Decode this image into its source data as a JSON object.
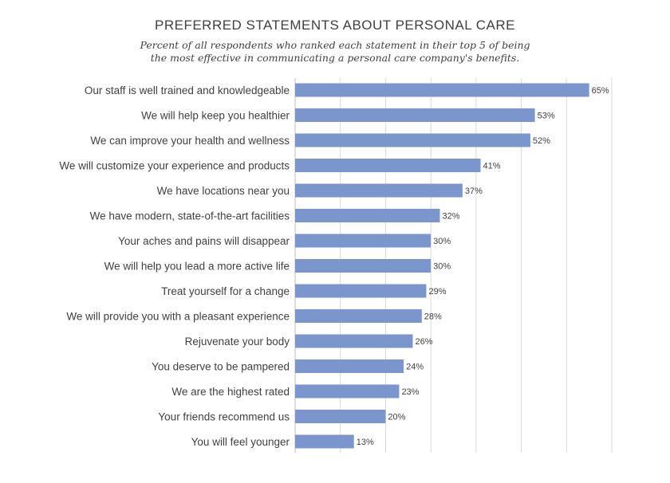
{
  "chart_data": {
    "type": "bar",
    "orientation": "horizontal",
    "title": "PREFERRED STATEMENTS ABOUT PERSONAL CARE",
    "subtitle_line1": "Percent of all respondents who ranked each statement in their top 5 of being",
    "subtitle_line2": "the most effective in communicating a personal care company's benefits.",
    "xlim": [
      0,
      70
    ],
    "grid": "vertical",
    "bar_color": "#7a96cc",
    "categories": [
      "Our staff is well trained and knowledgeable",
      "We will help keep you healthier",
      "We can improve your health and wellness",
      "We will customize your experience and products",
      "We have locations near you",
      "We have modern, state-of-the-art facilities",
      "Your aches and pains will disappear",
      "We will help you lead a more active life",
      "Treat yourself for a change",
      "We will provide you with a pleasant experience",
      "Rejuvenate your body",
      "You deserve to be pampered",
      "We are the highest rated",
      "Your friends recommend us",
      "You will feel younger"
    ],
    "values": [
      65,
      53,
      52,
      41,
      37,
      32,
      30,
      30,
      29,
      28,
      26,
      24,
      23,
      20,
      13
    ],
    "value_labels": [
      "65%",
      "53%",
      "52%",
      "41%",
      "37%",
      "32%",
      "30%",
      "30%",
      "29%",
      "28%",
      "26%",
      "24%",
      "23%",
      "20%",
      "13%"
    ]
  }
}
